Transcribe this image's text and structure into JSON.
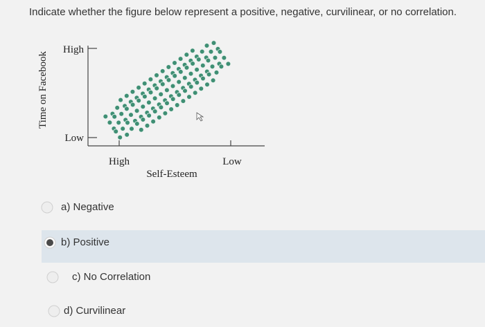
{
  "question": "Indicate whether the figure below represent a positive, negative, curvilinear, or no correlation.",
  "figure": {
    "y_axis_title": "Time on Facebook",
    "y_high": "High",
    "y_low": "Low",
    "x_high": "High",
    "x_low": "Low",
    "x_axis_title": "Self-Esteem"
  },
  "options": [
    {
      "label": "a) Negative",
      "selected": false
    },
    {
      "label": "b) Positive",
      "selected": true
    },
    {
      "label": "c) No Correlation",
      "selected": false
    },
    {
      "label": "d) Curvilinear",
      "selected": false
    }
  ]
}
